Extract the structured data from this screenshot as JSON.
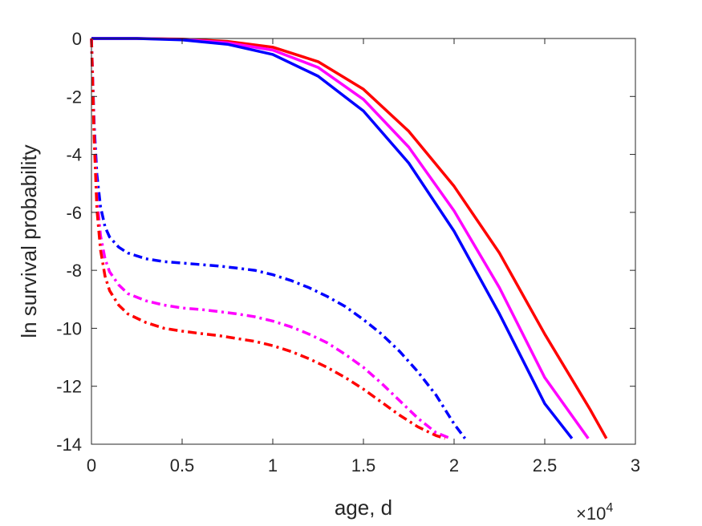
{
  "chart_data": {
    "type": "line",
    "title": "",
    "xlabel": "age, d",
    "ylabel": "ln survival probability",
    "x_exponent_base": "×10",
    "x_exponent_power": "4",
    "xlim": [
      0,
      30000
    ],
    "ylim": [
      -14,
      0
    ],
    "xticks": [
      0,
      5000,
      10000,
      15000,
      20000,
      25000,
      30000
    ],
    "xtick_labels": [
      "0",
      "0.5",
      "1",
      "1.5",
      "2",
      "2.5",
      "3"
    ],
    "yticks": [
      0,
      -2,
      -4,
      -6,
      -8,
      -10,
      -12,
      -14
    ],
    "ytick_labels": [
      "0",
      "-2",
      "-4",
      "-6",
      "-8",
      "-10",
      "-12",
      "-14"
    ],
    "grid": false,
    "legend": "none",
    "series": [
      {
        "color": "#ff0000",
        "style": "solid",
        "x": [
          0,
          2500,
          5000,
          7500,
          10000,
          12500,
          15000,
          17500,
          20000,
          22500,
          25000,
          27500,
          28400
        ],
        "y": [
          0,
          0,
          -0.02,
          -0.1,
          -0.3,
          -0.8,
          -1.75,
          -3.2,
          -5.1,
          -7.4,
          -10.2,
          -12.8,
          -13.8
        ]
      },
      {
        "color": "#ff00ff",
        "style": "solid",
        "x": [
          0,
          2500,
          5000,
          7500,
          10000,
          12500,
          15000,
          17500,
          20000,
          22500,
          25000,
          27400
        ],
        "y": [
          0,
          0,
          -0.03,
          -0.15,
          -0.4,
          -1.0,
          -2.1,
          -3.75,
          -5.95,
          -8.6,
          -11.7,
          -13.8
        ]
      },
      {
        "color": "#0000ff",
        "style": "solid",
        "x": [
          0,
          2500,
          5000,
          7500,
          10000,
          12500,
          15000,
          17500,
          20000,
          22500,
          25000,
          26500
        ],
        "y": [
          0,
          0,
          -0.05,
          -0.2,
          -0.55,
          -1.3,
          -2.5,
          -4.3,
          -6.65,
          -9.5,
          -12.6,
          -13.8
        ]
      },
      {
        "color": "#0000ff",
        "style": "dashdot",
        "x": [
          0,
          150,
          300,
          500,
          750,
          1000,
          1500,
          2000,
          3000,
          4000,
          5000,
          6000,
          7000,
          8000,
          9000,
          10000,
          11000,
          12000,
          13000,
          14000,
          15000,
          16000,
          17000,
          18000,
          19000,
          20000,
          20600
        ],
        "y": [
          0,
          -3.0,
          -4.7,
          -5.8,
          -6.5,
          -6.85,
          -7.2,
          -7.4,
          -7.6,
          -7.7,
          -7.75,
          -7.8,
          -7.85,
          -7.92,
          -8.0,
          -8.15,
          -8.35,
          -8.6,
          -8.9,
          -9.25,
          -9.7,
          -10.2,
          -10.8,
          -11.5,
          -12.3,
          -13.3,
          -13.8
        ]
      },
      {
        "color": "#ff00ff",
        "style": "dashdot",
        "x": [
          0,
          150,
          300,
          500,
          750,
          1000,
          1500,
          2000,
          3000,
          4000,
          5000,
          6000,
          7000,
          8000,
          9000,
          10000,
          11000,
          12000,
          13000,
          14000,
          15000,
          16000,
          17000,
          18000,
          19000,
          19800
        ],
        "y": [
          0,
          -3.3,
          -5.5,
          -6.8,
          -7.6,
          -8.05,
          -8.5,
          -8.8,
          -9.05,
          -9.2,
          -9.3,
          -9.35,
          -9.42,
          -9.5,
          -9.6,
          -9.75,
          -9.95,
          -10.2,
          -10.5,
          -10.9,
          -11.35,
          -11.9,
          -12.5,
          -13.1,
          -13.6,
          -13.8
        ]
      },
      {
        "color": "#ff0000",
        "style": "dashdot",
        "x": [
          0,
          150,
          300,
          500,
          750,
          1000,
          1500,
          2000,
          3000,
          4000,
          5000,
          6000,
          7000,
          8000,
          9000,
          10000,
          11000,
          12000,
          13000,
          14000,
          15000,
          16000,
          17000,
          18000,
          19000,
          19500
        ],
        "y": [
          0,
          -3.5,
          -5.9,
          -7.3,
          -8.2,
          -8.7,
          -9.2,
          -9.5,
          -9.8,
          -10.0,
          -10.1,
          -10.18,
          -10.25,
          -10.35,
          -10.45,
          -10.6,
          -10.8,
          -11.05,
          -11.35,
          -11.7,
          -12.1,
          -12.55,
          -13.0,
          -13.4,
          -13.7,
          -13.8
        ]
      }
    ]
  }
}
